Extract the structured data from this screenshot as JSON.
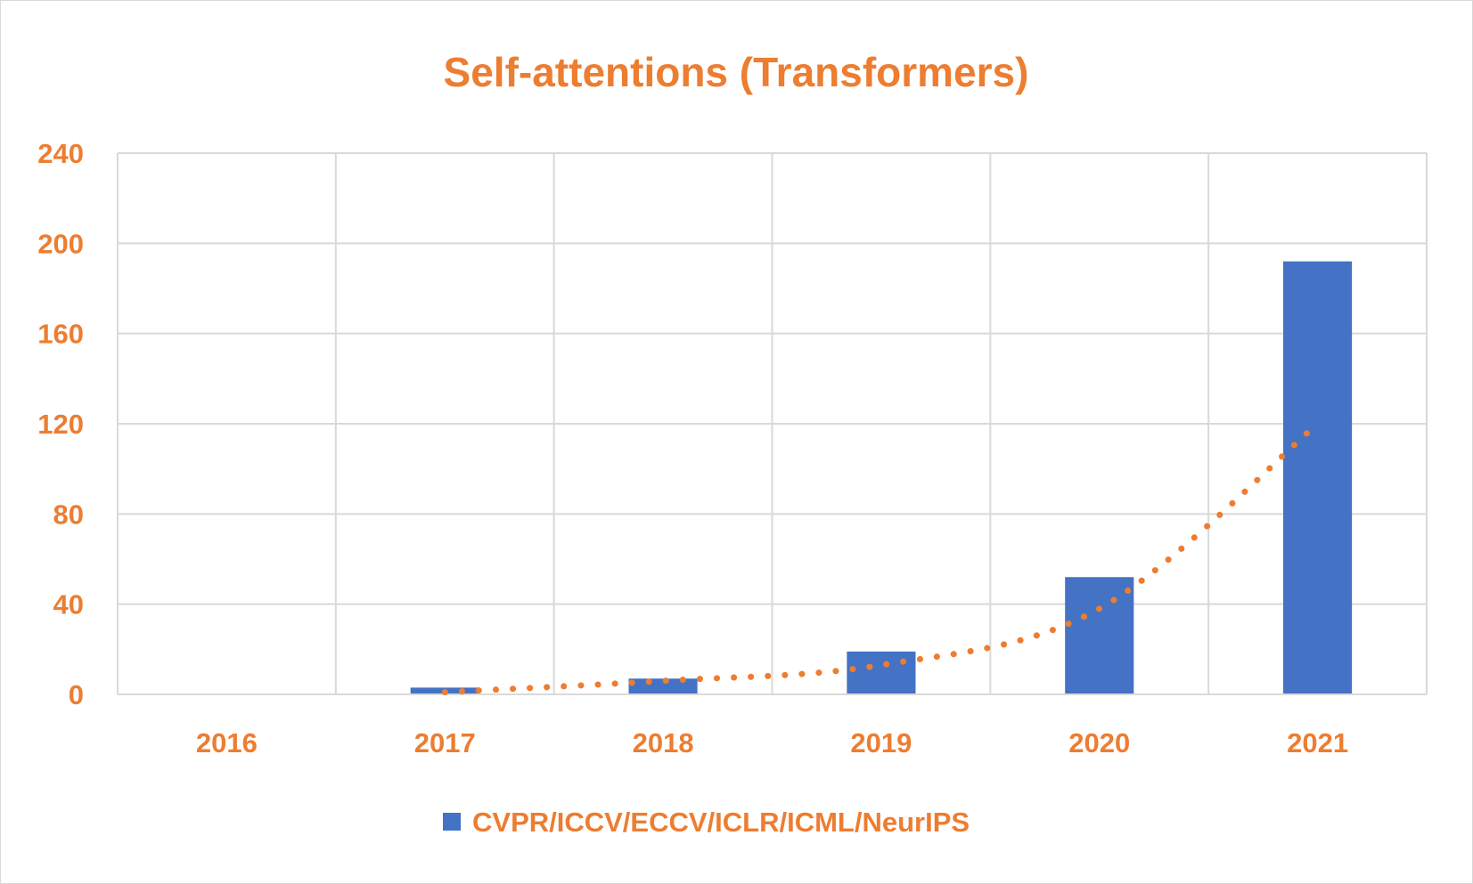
{
  "chart_data": {
    "type": "bar",
    "title": "Self-attentions (Transformers)",
    "xlabel": "",
    "ylabel": "",
    "categories": [
      "2016",
      "2017",
      "2018",
      "2019",
      "2020",
      "2021"
    ],
    "series": [
      {
        "name": "CVPR/ICCV/ECCV/ICLR/ICML/NeurIPS",
        "values": [
          0,
          3,
          7,
          19,
          52,
          192
        ],
        "color": "#4472c4"
      }
    ],
    "trendline": {
      "style": "dotted",
      "color": "#ed7d31",
      "values": [
        0,
        1,
        6,
        13,
        38,
        120
      ]
    },
    "ylim": [
      0,
      240
    ],
    "yticks": [
      0,
      40,
      80,
      120,
      160,
      200,
      240
    ],
    "grid": true,
    "legend_position": "bottom",
    "text_color": "#ed7d31",
    "grid_color": "#d9d9d9"
  }
}
